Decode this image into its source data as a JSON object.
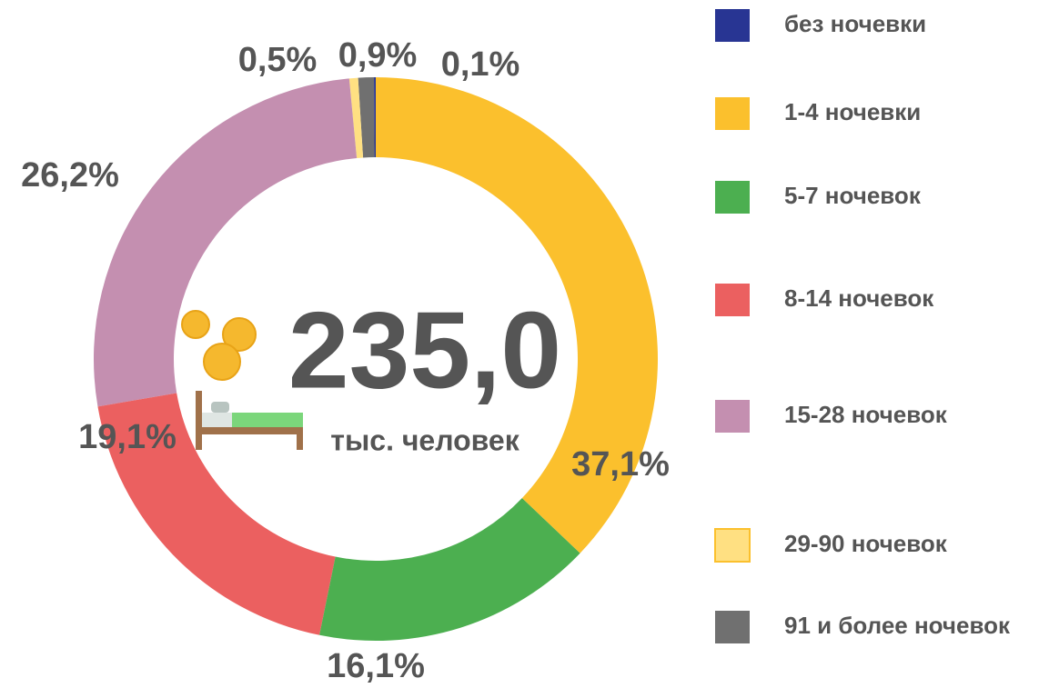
{
  "chart_data": {
    "type": "pie",
    "center_text": "235,0",
    "center_subtext": "тыс. человек",
    "categories": [
      "без ночевки",
      "1-4 ночевки",
      "5-7 ночевок",
      "8-14 ночевок",
      "15-28 ночевок",
      "29-90 ночевок",
      "91 и более ночевок"
    ],
    "values": [
      0.1,
      37.1,
      16.1,
      19.1,
      26.2,
      0.5,
      0.9
    ],
    "value_labels": [
      "0,1%",
      "37,1%",
      "16,1%",
      "19,1%",
      "26,2%",
      "0,5%",
      "0,9%"
    ],
    "colors": [
      "#283593",
      "#fbc02d",
      "#4caf50",
      "#eb6060",
      "#c48fb0",
      "#ffe082",
      "#707070"
    ],
    "legend": "right"
  }
}
